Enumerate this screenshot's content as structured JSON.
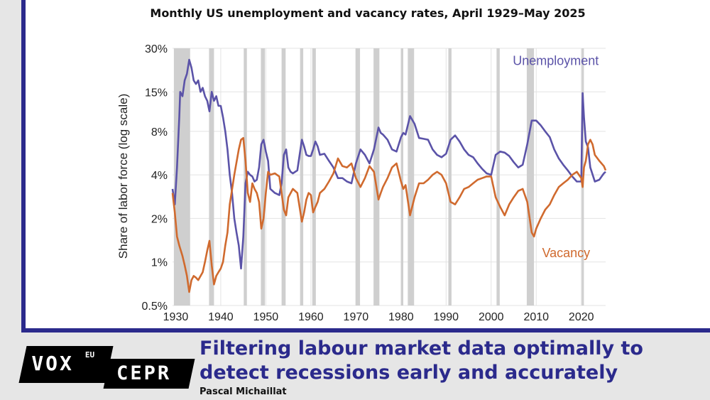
{
  "chart_data": {
    "type": "line",
    "title": "Monthly US unemployment and vacancy rates, April 1929–May 2025",
    "ylabel": "Share of labor force (log scale)",
    "xlabel": "",
    "y_scale": "log",
    "ylim": [
      0.5,
      30
    ],
    "xlim": [
      1929.3,
      2025.4
    ],
    "y_ticks": [
      {
        "value": 30,
        "label": "30%"
      },
      {
        "value": 15,
        "label": "15%"
      },
      {
        "value": 8,
        "label": "8%"
      },
      {
        "value": 4,
        "label": "4%"
      },
      {
        "value": 2,
        "label": "2%"
      },
      {
        "value": 1,
        "label": "1%"
      },
      {
        "value": 0.5,
        "label": "0.5%"
      }
    ],
    "x_ticks": [
      {
        "value": 1930,
        "label": "1930"
      },
      {
        "value": 1940,
        "label": "1940"
      },
      {
        "value": 1950,
        "label": "1950"
      },
      {
        "value": 1960,
        "label": "1960"
      },
      {
        "value": 1970,
        "label": "1970"
      },
      {
        "value": 1980,
        "label": "1980"
      },
      {
        "value": 1990,
        "label": "1990"
      },
      {
        "value": 2000,
        "label": "2000"
      },
      {
        "value": 2010,
        "label": "2010"
      },
      {
        "value": 2020,
        "label": "2020"
      }
    ],
    "grid": true,
    "recessions": [
      [
        1929.6,
        1933.2
      ],
      [
        1937.4,
        1938.5
      ],
      [
        1945.1,
        1945.8
      ],
      [
        1948.9,
        1949.8
      ],
      [
        1953.5,
        1954.4
      ],
      [
        1957.6,
        1958.3
      ],
      [
        1960.3,
        1961.1
      ],
      [
        1969.9,
        1970.9
      ],
      [
        1973.9,
        1975.2
      ],
      [
        1980.0,
        1980.5
      ],
      [
        1981.5,
        1982.9
      ],
      [
        1990.5,
        1991.2
      ],
      [
        2001.2,
        2001.9
      ],
      [
        2007.9,
        2009.5
      ],
      [
        2020.1,
        2020.3
      ]
    ],
    "series": [
      {
        "name": "Unemployment",
        "color": "#5b53a8",
        "x": [
          1929.3,
          1929.8,
          1930.3,
          1930.8,
          1931.0,
          1931.5,
          1932.0,
          1932.5,
          1933.0,
          1933.5,
          1934.0,
          1934.5,
          1935.0,
          1935.5,
          1936.0,
          1936.5,
          1937.0,
          1937.5,
          1938.0,
          1938.5,
          1939.0,
          1939.5,
          1940.0,
          1940.5,
          1941.0,
          1941.5,
          1942.0,
          1942.5,
          1943.0,
          1943.5,
          1944.0,
          1944.5,
          1945.0,
          1945.5,
          1946.0,
          1946.5,
          1947.0,
          1947.5,
          1948.0,
          1948.5,
          1949.0,
          1949.5,
          1950.0,
          1950.5,
          1951.0,
          1952.0,
          1953.0,
          1953.5,
          1954.0,
          1954.5,
          1955.0,
          1955.5,
          1956.0,
          1957.0,
          1957.5,
          1958.0,
          1958.5,
          1959.0,
          1959.5,
          1960.0,
          1960.5,
          1961.0,
          1961.5,
          1962.0,
          1963.0,
          1964.0,
          1965.0,
          1966.0,
          1967.0,
          1968.0,
          1969.0,
          1970.0,
          1971.0,
          1972.0,
          1973.0,
          1974.0,
          1975.0,
          1975.5,
          1976.0,
          1977.0,
          1978.0,
          1979.0,
          1980.0,
          1980.5,
          1981.0,
          1982.0,
          1983.0,
          1984.0,
          1985.0,
          1986.0,
          1987.0,
          1988.0,
          1989.0,
          1990.0,
          1991.0,
          1992.0,
          1993.0,
          1994.0,
          1995.0,
          1996.0,
          1997.0,
          1998.0,
          1999.0,
          2000.0,
          2001.0,
          2002.0,
          2003.0,
          2004.0,
          2005.0,
          2006.0,
          2007.0,
          2008.0,
          2009.0,
          2010.0,
          2011.0,
          2012.0,
          2013.0,
          2014.0,
          2015.0,
          2016.0,
          2017.0,
          2018.0,
          2019.0,
          2020.0,
          2020.3,
          2020.6,
          2021.0,
          2021.5,
          2022.0,
          2023.0,
          2024.0,
          2025.0,
          2025.4
        ],
        "values": [
          3.2,
          2.5,
          4.5,
          10,
          15,
          14,
          18,
          20,
          25,
          22,
          18,
          17,
          18,
          15,
          16,
          14,
          13,
          11,
          15,
          13,
          14,
          12,
          12,
          10,
          8,
          6,
          4,
          3,
          2,
          1.6,
          1.3,
          0.9,
          1.5,
          3.5,
          4.2,
          4.0,
          3.9,
          3.6,
          3.7,
          4.5,
          6.5,
          7.0,
          5.8,
          5.0,
          3.2,
          3.0,
          2.9,
          3.5,
          5.5,
          6.0,
          4.5,
          4.2,
          4.1,
          4.3,
          5.5,
          7.0,
          6.3,
          5.5,
          5.4,
          5.4,
          6.0,
          6.8,
          6.3,
          5.5,
          5.6,
          5.0,
          4.5,
          3.8,
          3.8,
          3.6,
          3.5,
          4.8,
          6.0,
          5.5,
          4.8,
          6.0,
          8.5,
          7.8,
          7.6,
          7.0,
          6.0,
          5.8,
          7.3,
          7.8,
          7.6,
          10.2,
          9.0,
          7.2,
          7.1,
          7.0,
          6.0,
          5.5,
          5.3,
          5.6,
          7.0,
          7.5,
          6.8,
          6.0,
          5.5,
          5.3,
          4.8,
          4.4,
          4.1,
          4.0,
          5.5,
          5.8,
          5.7,
          5.4,
          4.9,
          4.5,
          4.7,
          6.5,
          9.5,
          9.5,
          8.8,
          8.0,
          7.3,
          6.0,
          5.2,
          4.7,
          4.3,
          3.9,
          3.6,
          3.6,
          14.7,
          10.0,
          6.8,
          6.2,
          4.5,
          3.6,
          3.7,
          4.1,
          4.2
        ]
      },
      {
        "name": "Vacancy",
        "color": "#d06a2e",
        "x": [
          1929.3,
          1929.8,
          1930.3,
          1930.8,
          1931.5,
          1932.0,
          1932.5,
          1933.0,
          1933.5,
          1934.0,
          1934.5,
          1935.0,
          1936.0,
          1936.5,
          1937.0,
          1937.5,
          1938.0,
          1938.5,
          1939.0,
          1939.5,
          1940.0,
          1940.5,
          1941.0,
          1941.5,
          1942.0,
          1943.0,
          1944.0,
          1944.5,
          1945.0,
          1945.5,
          1946.0,
          1946.5,
          1947.0,
          1947.5,
          1948.0,
          1948.5,
          1949.0,
          1949.5,
          1950.0,
          1950.5,
          1951.0,
          1952.0,
          1953.0,
          1953.5,
          1954.0,
          1954.5,
          1955.0,
          1956.0,
          1957.0,
          1958.0,
          1958.5,
          1959.0,
          1959.5,
          1960.0,
          1960.5,
          1961.0,
          1961.5,
          1962.0,
          1963.0,
          1964.0,
          1965.0,
          1966.0,
          1967.0,
          1968.0,
          1969.0,
          1970.0,
          1971.0,
          1972.0,
          1973.0,
          1974.0,
          1975.0,
          1975.5,
          1976.0,
          1977.0,
          1978.0,
          1979.0,
          1980.0,
          1980.5,
          1981.0,
          1982.0,
          1983.0,
          1984.0,
          1985.0,
          1986.0,
          1987.0,
          1988.0,
          1989.0,
          1990.0,
          1991.0,
          1992.0,
          1993.0,
          1994.0,
          1995.0,
          1996.0,
          1997.0,
          1998.0,
          1999.0,
          2000.0,
          2001.0,
          2002.0,
          2003.0,
          2004.0,
          2005.0,
          2006.0,
          2007.0,
          2008.0,
          2009.0,
          2009.5,
          2010.0,
          2011.0,
          2012.0,
          2013.0,
          2014.0,
          2015.0,
          2016.0,
          2017.0,
          2018.0,
          2019.0,
          2020.0,
          2020.3,
          2020.6,
          2021.0,
          2021.5,
          2022.0,
          2022.5,
          2023.0,
          2024.0,
          2025.0,
          2025.4
        ],
        "values": [
          3.0,
          2.2,
          1.5,
          1.3,
          1.1,
          0.95,
          0.8,
          0.62,
          0.75,
          0.8,
          0.78,
          0.75,
          0.85,
          1.0,
          1.2,
          1.4,
          0.95,
          0.7,
          0.8,
          0.85,
          0.9,
          1.0,
          1.3,
          1.6,
          2.5,
          4.0,
          6.0,
          7.0,
          7.2,
          5.0,
          3.0,
          2.6,
          3.5,
          3.2,
          3.0,
          2.6,
          1.7,
          2.0,
          3.0,
          4.2,
          4.0,
          4.1,
          3.9,
          3.0,
          2.3,
          2.1,
          2.8,
          3.2,
          3.0,
          1.9,
          2.2,
          2.7,
          3.0,
          2.9,
          2.2,
          2.4,
          2.6,
          3.0,
          3.2,
          3.6,
          4.1,
          5.2,
          4.6,
          4.5,
          4.8,
          3.8,
          3.3,
          3.8,
          4.6,
          4.2,
          2.7,
          3.0,
          3.3,
          3.8,
          4.5,
          4.8,
          3.6,
          3.2,
          3.4,
          2.1,
          2.8,
          3.5,
          3.5,
          3.7,
          4.0,
          4.2,
          4.0,
          3.5,
          2.6,
          2.5,
          2.8,
          3.2,
          3.3,
          3.5,
          3.7,
          3.8,
          3.9,
          3.9,
          2.8,
          2.4,
          2.1,
          2.5,
          2.8,
          3.1,
          3.2,
          2.6,
          1.6,
          1.5,
          1.7,
          2.0,
          2.3,
          2.5,
          2.9,
          3.3,
          3.5,
          3.7,
          4.0,
          4.2,
          3.8,
          3.3,
          4.5,
          5.0,
          6.5,
          7.0,
          6.5,
          5.5,
          5.0,
          4.6,
          4.3
        ]
      }
    ],
    "annotations": [
      {
        "text": "Unemployment",
        "series": "Unemployment",
        "x": 2004.8,
        "y": 23
      },
      {
        "text": "Vacancy",
        "series": "Vacancy",
        "x": 2011.3,
        "y": 1.08
      }
    ]
  },
  "footer": {
    "logo_vox": "VOX",
    "logo_eu": "EU",
    "logo_cepr": "CEPR",
    "headline": "Filtering labour market data optimally to detect recessions early and accurately",
    "author": "Pascal Michaillat"
  }
}
